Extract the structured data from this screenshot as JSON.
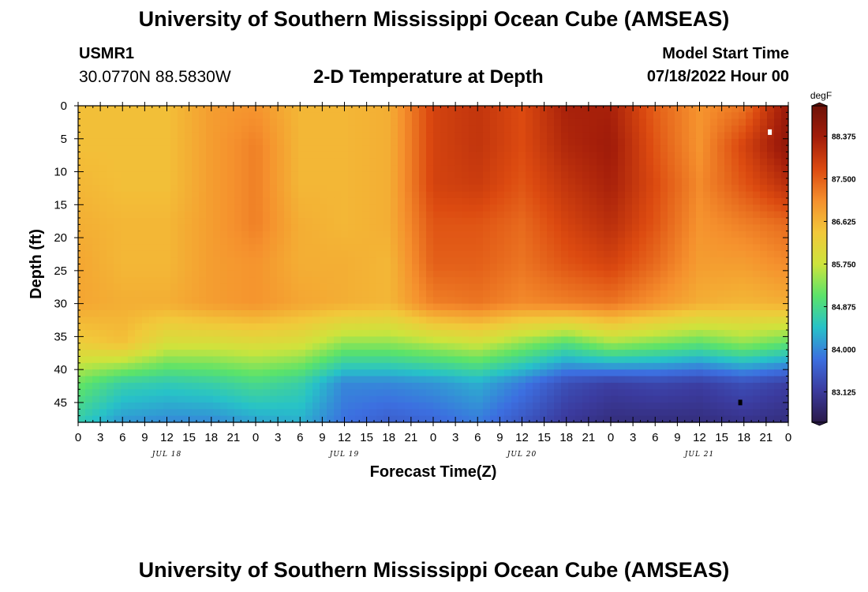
{
  "header": {
    "title": "University of Southern Mississippi Ocean Cube (AMSEAS)",
    "station_id": "USMR1",
    "station_coords": "30.0770N  88.5830W",
    "subtitle": "2-D Temperature at Depth",
    "model_start_label": "Model Start Time",
    "model_start_value": "07/18/2022 Hour 00"
  },
  "footer": {
    "title": "University of Southern Mississippi Ocean Cube (AMSEAS)"
  },
  "chart_data": {
    "type": "heatmap",
    "title": "2-D Temperature at Depth",
    "xlabel": "Forecast Time(Z)",
    "ylabel": "Depth (ft)",
    "xlim": [
      0,
      96
    ],
    "ylim": [
      0,
      48
    ],
    "y_inverted": true,
    "x_tick_values": [
      0,
      3,
      6,
      9,
      12,
      15,
      18,
      21,
      24,
      27,
      30,
      33,
      36,
      39,
      42,
      45,
      48,
      51,
      54,
      57,
      60,
      63,
      66,
      69,
      72,
      75,
      78,
      81,
      84,
      87,
      90,
      93,
      96
    ],
    "x_tick_labels": [
      "0",
      "3",
      "6",
      "9",
      "12",
      "15",
      "18",
      "21",
      "0",
      "3",
      "6",
      "9",
      "12",
      "15",
      "18",
      "21",
      "0",
      "3",
      "6",
      "9",
      "12",
      "15",
      "18",
      "21",
      "0",
      "3",
      "6",
      "9",
      "12",
      "15",
      "18",
      "21",
      "0"
    ],
    "day_labels": [
      {
        "x": 12,
        "label": "JUL 18"
      },
      {
        "x": 36,
        "label": "JUL 19"
      },
      {
        "x": 60,
        "label": "JUL 20"
      },
      {
        "x": 84,
        "label": "JUL 21"
      }
    ],
    "y_tick_values": [
      0,
      5,
      10,
      15,
      20,
      25,
      30,
      35,
      40,
      45
    ],
    "y_tick_labels": [
      "0",
      "5",
      "10",
      "15",
      "20",
      "25",
      "30",
      "35",
      "40",
      "45"
    ],
    "grid": false,
    "colorbar": {
      "units": "degF",
      "range": [
        82.5,
        89.0
      ],
      "tick_values": [
        83.125,
        84.0,
        84.875,
        85.75,
        86.625,
        87.5,
        88.375
      ],
      "tick_labels": [
        "83.125",
        "84.000",
        "84.875",
        "85.750",
        "86.625",
        "87.500",
        "88.375"
      ],
      "palette": [
        "#2a1a4a",
        "#3b3b9e",
        "#3c6fe0",
        "#27c2c8",
        "#5be36a",
        "#cde43c",
        "#f2c83a",
        "#f5902d",
        "#dc4a10",
        "#a31d0a",
        "#6e1208"
      ]
    },
    "temperature_degF": {
      "depths_ft": [
        0,
        6,
        12,
        18,
        24,
        30,
        36,
        42,
        48
      ],
      "times_h": [
        0,
        6,
        12,
        18,
        24,
        30,
        36,
        42,
        48,
        54,
        60,
        66,
        72,
        78,
        84,
        90,
        96
      ],
      "values": [
        [
          86.5,
          86.5,
          86.5,
          86.9,
          87.0,
          86.6,
          86.6,
          86.7,
          87.8,
          88.0,
          87.7,
          88.3,
          88.3,
          87.5,
          87.0,
          87.3,
          88.5
        ],
        [
          86.5,
          86.5,
          86.5,
          86.9,
          87.2,
          86.6,
          86.6,
          86.7,
          87.8,
          88.0,
          87.7,
          88.2,
          88.4,
          87.6,
          87.0,
          87.8,
          88.6
        ],
        [
          86.6,
          86.5,
          86.5,
          86.9,
          87.2,
          86.6,
          86.6,
          86.7,
          87.8,
          87.9,
          87.6,
          88.0,
          88.3,
          87.7,
          87.1,
          87.6,
          88.1
        ],
        [
          86.7,
          86.6,
          86.6,
          86.9,
          87.2,
          86.7,
          86.6,
          86.7,
          87.6,
          87.6,
          87.4,
          87.8,
          88.1,
          87.6,
          87.0,
          87.2,
          87.4
        ],
        [
          86.8,
          86.6,
          86.6,
          86.9,
          87.0,
          86.7,
          86.7,
          86.6,
          87.5,
          87.5,
          87.3,
          87.6,
          87.8,
          87.4,
          86.9,
          86.9,
          87.1
        ],
        [
          86.8,
          86.7,
          86.7,
          86.9,
          87.0,
          86.8,
          86.7,
          86.6,
          87.2,
          87.3,
          87.1,
          87.2,
          87.3,
          87.0,
          86.7,
          86.6,
          86.7
        ],
        [
          86.3,
          86.5,
          85.9,
          85.9,
          86.0,
          85.9,
          85.4,
          85.4,
          85.6,
          85.8,
          85.4,
          85.0,
          85.5,
          85.3,
          85.1,
          85.4,
          85.1
        ],
        [
          85.2,
          84.7,
          84.6,
          84.7,
          84.9,
          84.7,
          84.0,
          84.0,
          84.1,
          84.3,
          83.9,
          83.4,
          83.2,
          83.3,
          83.2,
          83.4,
          83.2
        ],
        [
          84.6,
          84.1,
          84.0,
          84.0,
          84.2,
          84.3,
          83.8,
          83.6,
          83.7,
          83.9,
          83.5,
          83.1,
          82.9,
          82.9,
          82.9,
          83.0,
          82.9
        ]
      ]
    },
    "markers": [
      {
        "x": 93.5,
        "depth": 4,
        "color": "#ffffff"
      },
      {
        "x": 89.5,
        "depth": 45,
        "color": "#000000"
      }
    ]
  }
}
